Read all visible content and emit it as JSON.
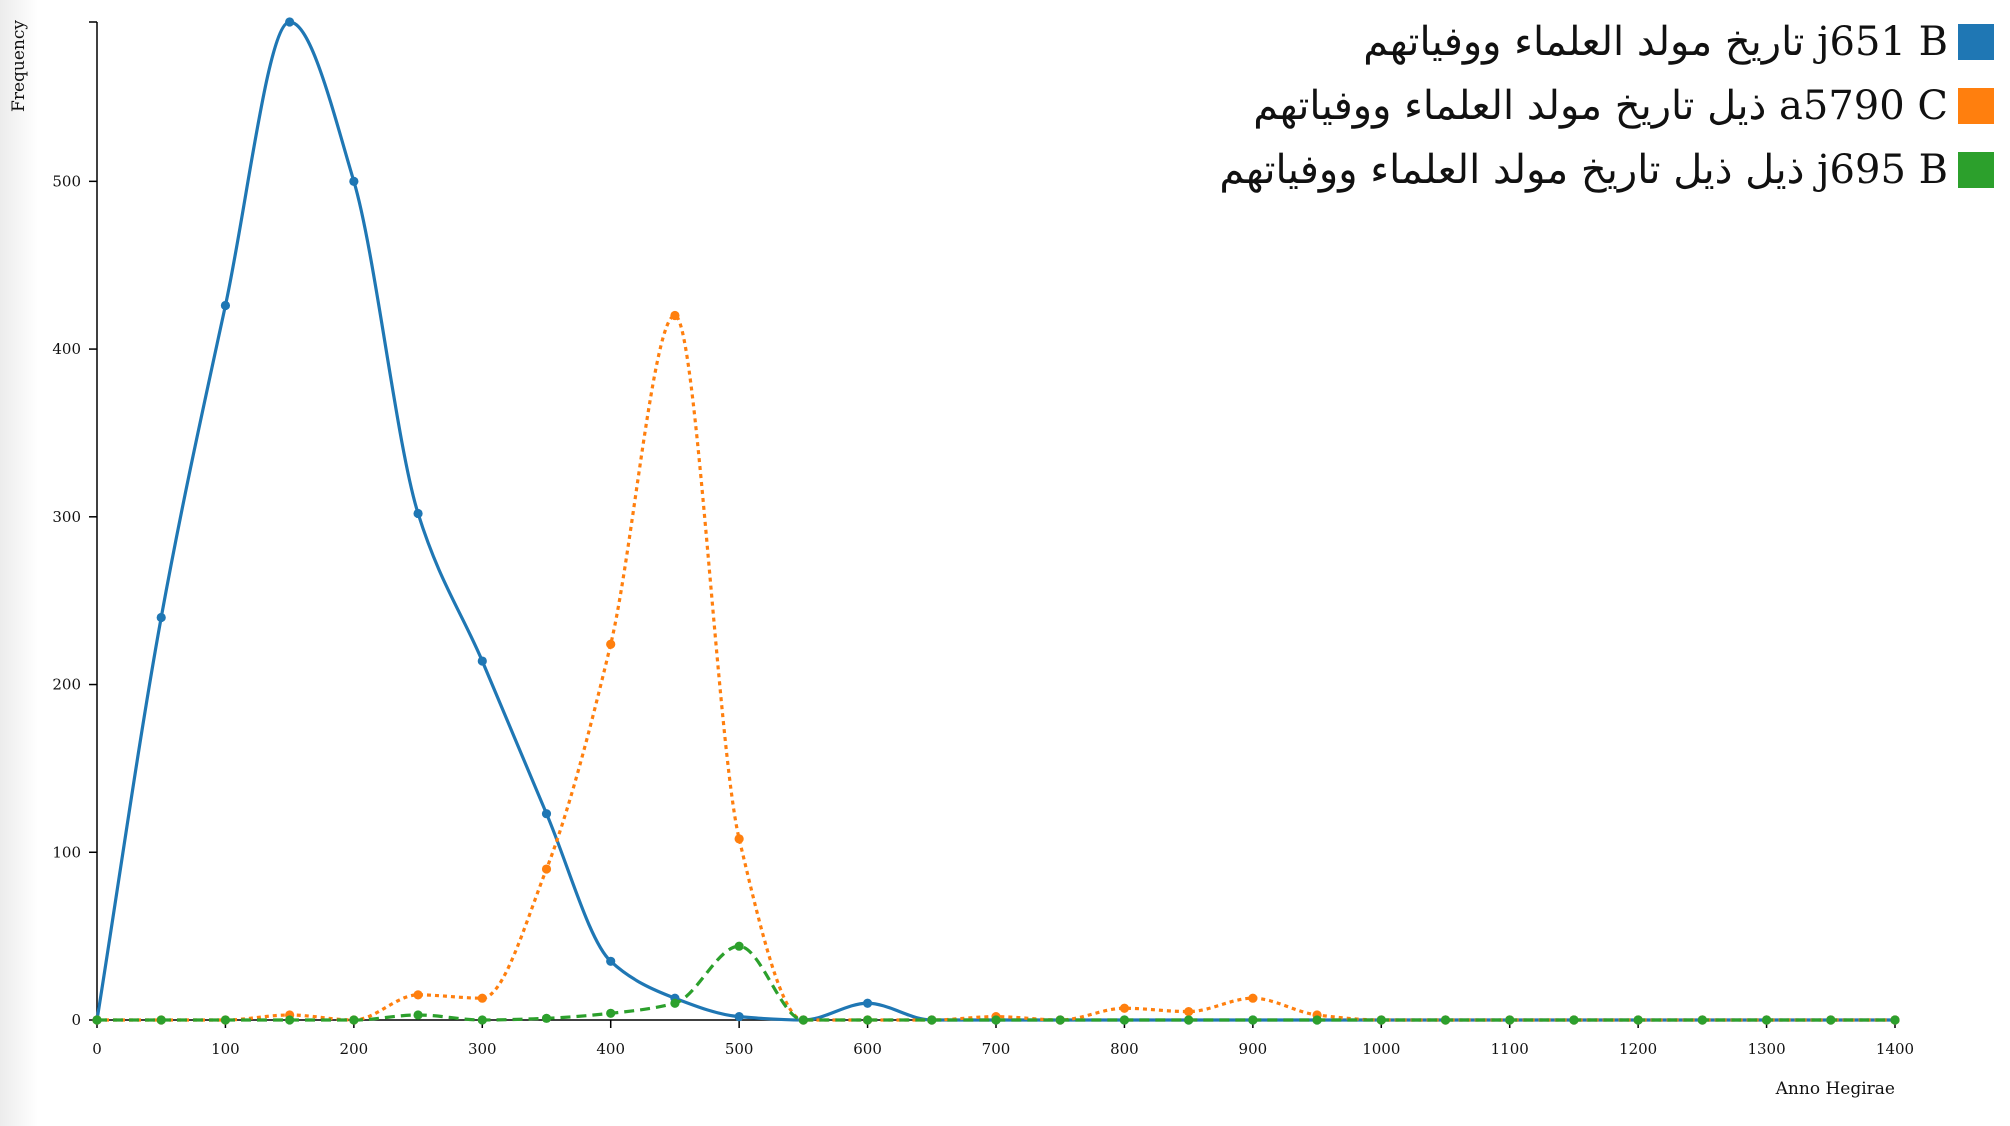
{
  "chart_data": {
    "type": "line",
    "xlabel": "Anno Hegirae",
    "ylabel": "Frequency",
    "xlim": [
      0,
      1400
    ],
    "ylim": [
      0,
      595
    ],
    "xticks": [
      0,
      100,
      200,
      300,
      400,
      500,
      600,
      700,
      800,
      900,
      1000,
      1100,
      1200,
      1300,
      1400
    ],
    "yticks": [
      0,
      100,
      200,
      300,
      400,
      500
    ],
    "legend_position": "top-right",
    "x": [
      0,
      50,
      100,
      150,
      200,
      250,
      300,
      350,
      400,
      450,
      500,
      550,
      600,
      650,
      700,
      750,
      800,
      850,
      900,
      950,
      1000,
      1050,
      1100,
      1150,
      1200,
      1250,
      1300,
      1350,
      1400
    ],
    "series": [
      {
        "name": "تاريخ مولد العلماء ووفياتهم j651 B",
        "color": "#1f77b4",
        "dash": "solid",
        "values": [
          0,
          240,
          426,
          595,
          500,
          302,
          214,
          123,
          35,
          13,
          2,
          0,
          10,
          0,
          0,
          0,
          0,
          0,
          0,
          0,
          0,
          0,
          0,
          0,
          0,
          0,
          0,
          0,
          0
        ]
      },
      {
        "name": "ذيل تاريخ مولد العلماء ووفياتهم a5790 C",
        "color": "#ff7f0e",
        "dash": "dotted",
        "values": [
          0,
          0,
          0,
          3,
          0,
          15,
          13,
          90,
          224,
          420,
          108,
          0,
          0,
          0,
          2,
          0,
          7,
          5,
          13,
          3,
          0,
          0,
          0,
          0,
          0,
          0,
          0,
          0,
          0
        ]
      },
      {
        "name": "ذيل ذيل تاريخ مولد العلماء ووفياتهم j695 B",
        "color": "#2ca02c",
        "dash": "dashed",
        "values": [
          0,
          0,
          0,
          0,
          0,
          3,
          0,
          1,
          4,
          10,
          44,
          0,
          0,
          0,
          0,
          0,
          0,
          0,
          0,
          0,
          0,
          0,
          0,
          0,
          0,
          0,
          0,
          0,
          0
        ]
      }
    ]
  }
}
